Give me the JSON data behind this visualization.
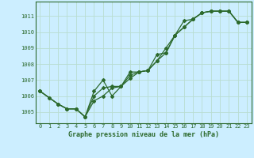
{
  "title": "Graphe pression niveau de la mer (hPa)",
  "background_color": "#cceeff",
  "grid_color": "#b8ddd0",
  "line_color": "#2d6a2d",
  "xlim": [
    -0.5,
    23.5
  ],
  "ylim": [
    1004.3,
    1011.9
  ],
  "yticks": [
    1005,
    1006,
    1007,
    1008,
    1009,
    1010,
    1011
  ],
  "xticks": [
    0,
    1,
    2,
    3,
    4,
    5,
    6,
    7,
    8,
    9,
    10,
    11,
    12,
    13,
    14,
    15,
    16,
    17,
    18,
    19,
    20,
    21,
    22,
    23
  ],
  "series1_x": [
    0,
    1,
    2,
    3,
    4,
    5,
    6,
    7,
    8,
    9,
    10,
    11,
    12,
    13,
    14,
    15,
    16,
    17,
    18,
    19,
    20,
    21,
    22,
    23
  ],
  "series1_y": [
    1006.3,
    1005.9,
    1005.5,
    1005.2,
    1005.2,
    1004.7,
    1005.7,
    1006.0,
    1006.5,
    1006.6,
    1007.3,
    1007.5,
    1007.6,
    1008.2,
    1008.7,
    1009.8,
    1010.3,
    1010.8,
    1011.2,
    1011.3,
    1011.3,
    1011.3,
    1010.6,
    1010.6
  ],
  "series2_x": [
    0,
    1,
    2,
    3,
    4,
    5,
    6,
    7,
    8,
    9,
    10,
    11,
    12,
    13,
    14,
    15,
    16,
    17,
    18,
    19,
    20,
    21,
    22,
    23
  ],
  "series2_y": [
    1006.3,
    1005.9,
    1005.5,
    1005.2,
    1005.2,
    1004.7,
    1006.0,
    1006.5,
    1006.6,
    1006.6,
    1007.1,
    1007.5,
    1007.6,
    1008.2,
    1009.0,
    1009.8,
    1010.7,
    1010.8,
    1011.2,
    1011.3,
    1011.3,
    1011.3,
    1010.6,
    1010.6
  ],
  "series3_x": [
    0,
    2,
    3,
    4,
    5,
    6,
    7,
    8,
    9,
    10,
    11,
    12,
    13,
    14,
    15,
    16,
    17,
    18,
    19,
    20,
    21,
    22,
    23
  ],
  "series3_y": [
    1006.3,
    1005.5,
    1005.2,
    1005.2,
    1004.7,
    1006.3,
    1007.0,
    1006.0,
    1006.6,
    1007.5,
    1007.5,
    1007.6,
    1008.6,
    1008.7,
    1009.8,
    1010.3,
    1010.8,
    1011.2,
    1011.3,
    1011.3,
    1011.3,
    1010.6,
    1010.6
  ]
}
